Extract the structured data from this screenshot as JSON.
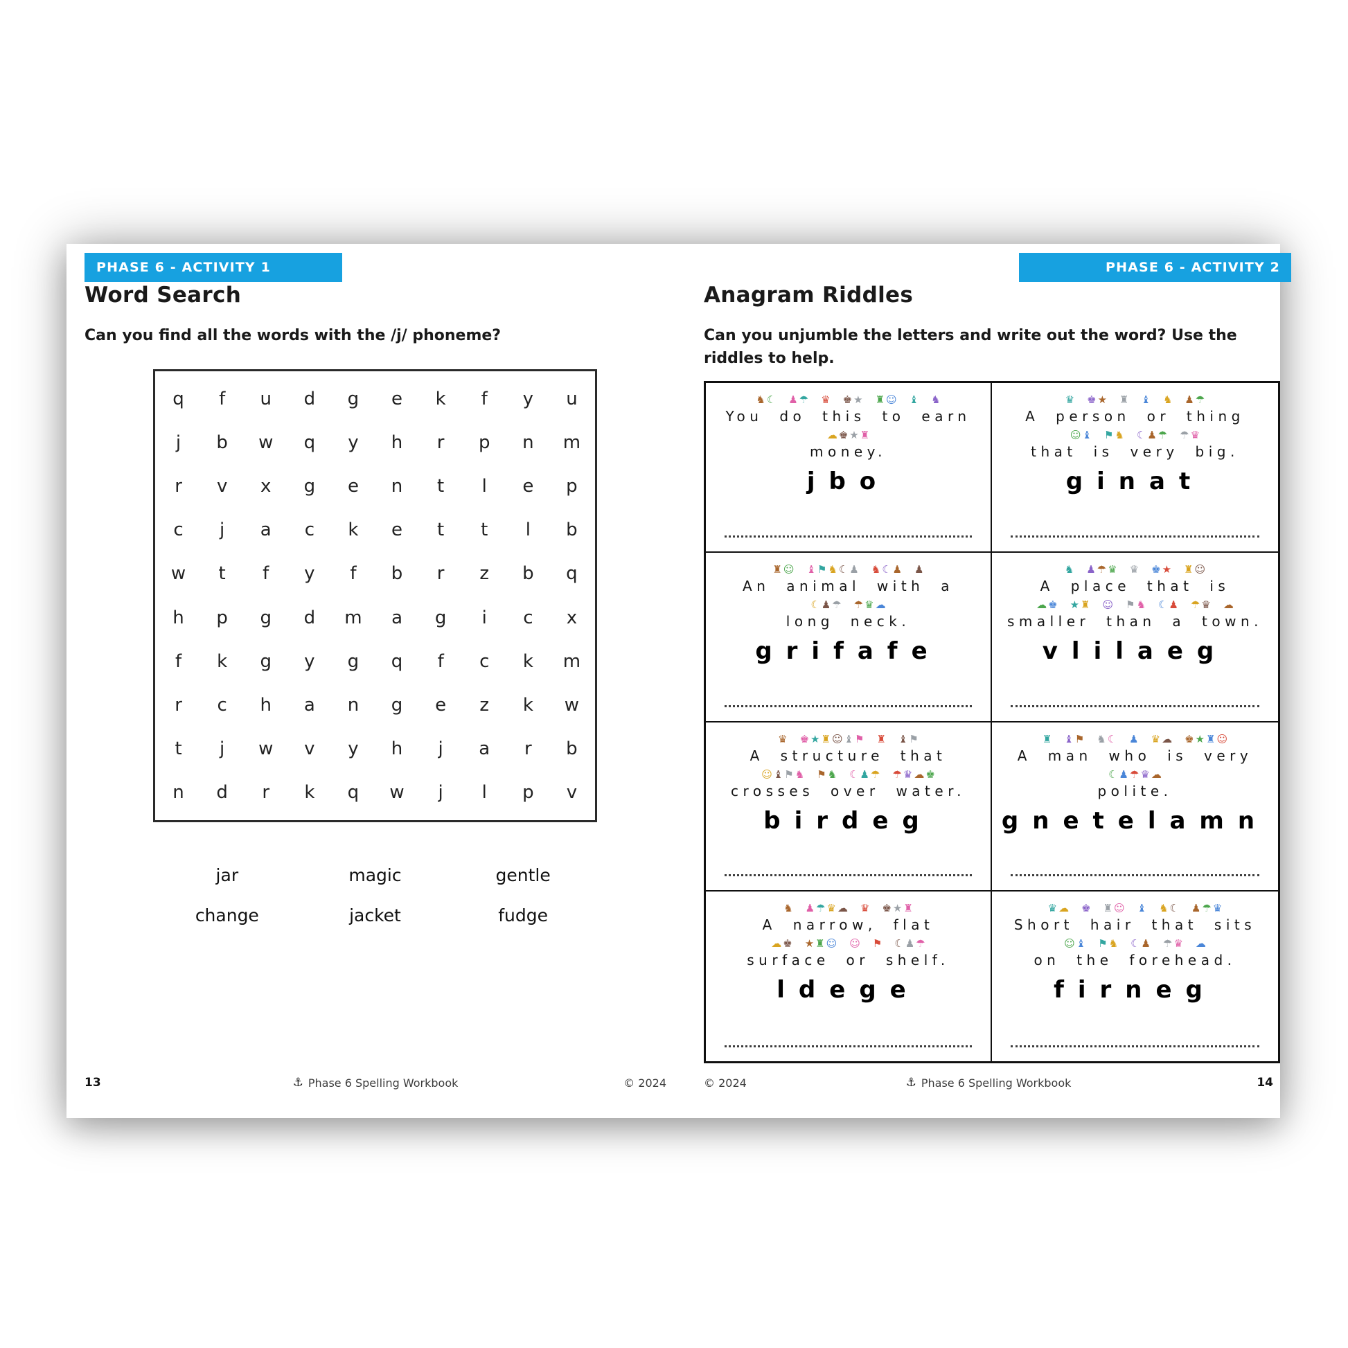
{
  "page_left": {
    "banner": "PHASE 6 - ACTIVITY 1",
    "title": "Word Search",
    "subtitle": "Can you find all the words with the /j/ phoneme?",
    "grid": [
      [
        "q",
        "f",
        "u",
        "d",
        "g",
        "e",
        "k",
        "f",
        "y",
        "u"
      ],
      [
        "j",
        "b",
        "w",
        "q",
        "y",
        "h",
        "r",
        "p",
        "n",
        "m"
      ],
      [
        "r",
        "v",
        "x",
        "g",
        "e",
        "n",
        "t",
        "l",
        "e",
        "p"
      ],
      [
        "c",
        "j",
        "a",
        "c",
        "k",
        "e",
        "t",
        "t",
        "l",
        "b"
      ],
      [
        "w",
        "t",
        "f",
        "y",
        "f",
        "b",
        "r",
        "z",
        "b",
        "q"
      ],
      [
        "h",
        "p",
        "g",
        "d",
        "m",
        "a",
        "g",
        "i",
        "c",
        "x"
      ],
      [
        "f",
        "k",
        "g",
        "y",
        "g",
        "q",
        "f",
        "c",
        "k",
        "m"
      ],
      [
        "r",
        "c",
        "h",
        "a",
        "n",
        "g",
        "e",
        "z",
        "k",
        "w"
      ],
      [
        "t",
        "j",
        "w",
        "v",
        "y",
        "h",
        "j",
        "a",
        "r",
        "b"
      ],
      [
        "n",
        "d",
        "r",
        "k",
        "q",
        "w",
        "j",
        "l",
        "p",
        "v"
      ]
    ],
    "word_bank": [
      "jar",
      "magic",
      "gentle",
      "change",
      "jacket",
      "fudge"
    ],
    "footer": {
      "page_number": "13",
      "brand_icon": "⚓",
      "brand": "Phase 6 Spelling Workbook",
      "copyright": "© 2024"
    }
  },
  "page_right": {
    "banner": "PHASE 6 - ACTIVITY 2",
    "title": "Anagram Riddles",
    "subtitle_line1": "Can you unjumble the letters and write out the word? Use the",
    "subtitle_line2": "riddles to help.",
    "riddles": [
      {
        "clue_line1": "You do this to earn",
        "clue_line2": "money.",
        "anagram": "jbo",
        "answer": "",
        "icons1": [
          2,
          2,
          1,
          2,
          2,
          1,
          1
        ],
        "icons2": [
          4
        ]
      },
      {
        "clue_line1": "A person or thing",
        "clue_line2": "that is very big.",
        "anagram": "ginat",
        "answer": "",
        "icons1": [
          1,
          2,
          1,
          1,
          1,
          2
        ],
        "icons2": [
          2,
          2,
          3,
          2
        ]
      },
      {
        "clue_line1": "An animal with a",
        "clue_line2": "long neck.",
        "anagram": "grifafe",
        "answer": "",
        "icons1": [
          2,
          5,
          3,
          1
        ],
        "icons2": [
          3,
          3
        ]
      },
      {
        "clue_line1": "A place that is",
        "clue_line2": "smaller than a town.",
        "anagram": "vlilaeg",
        "answer": "",
        "icons1": [
          1,
          3,
          1,
          2,
          2
        ],
        "icons2": [
          2,
          2,
          1,
          2,
          2,
          2,
          1
        ]
      },
      {
        "clue_line1": "A structure that",
        "clue_line2": "crosses over water.",
        "anagram": "birdeg",
        "answer": "",
        "icons1": [
          1,
          6,
          1,
          2
        ],
        "icons2": [
          4,
          2,
          3,
          4
        ]
      },
      {
        "clue_line1": "A man who is very",
        "clue_line2": "polite.",
        "anagram": "gnetelamn",
        "answer": "",
        "icons1": [
          1,
          2,
          2,
          1,
          2,
          4
        ],
        "icons2": [
          5
        ]
      },
      {
        "clue_line1": "A narrow, flat",
        "clue_line2": "surface or shelf.",
        "anagram": "ldege",
        "answer": "",
        "icons1": [
          1,
          4,
          1,
          3
        ],
        "icons2": [
          2,
          3,
          1,
          1,
          3
        ]
      },
      {
        "clue_line1": "Short hair that sits",
        "clue_line2": "on the forehead.",
        "anagram": "firneg",
        "answer": "",
        "icons1": [
          2,
          1,
          2,
          1,
          2,
          3
        ],
        "icons2": [
          2,
          2,
          2,
          2,
          1
        ]
      }
    ],
    "footer": {
      "copyright": "© 2024",
      "brand_icon": "⚓",
      "brand": "Phase 6 Spelling Workbook",
      "page_number": "14"
    }
  },
  "decor": {
    "banner_color": "#17a1e0",
    "icon_glyphs": [
      "♞",
      "☾",
      "♟",
      "☂",
      "♛",
      "☁",
      "♚",
      "★",
      "♜",
      "☺",
      "♝",
      "⚑"
    ],
    "icon_palette": [
      "#a9662c",
      "#9aa0a6",
      "#4ca64c",
      "#e060a8",
      "#4a86d8",
      "#33a6a0",
      "#d84b3a",
      "#d9a420",
      "#8a63c9",
      "#7a5548"
    ]
  }
}
